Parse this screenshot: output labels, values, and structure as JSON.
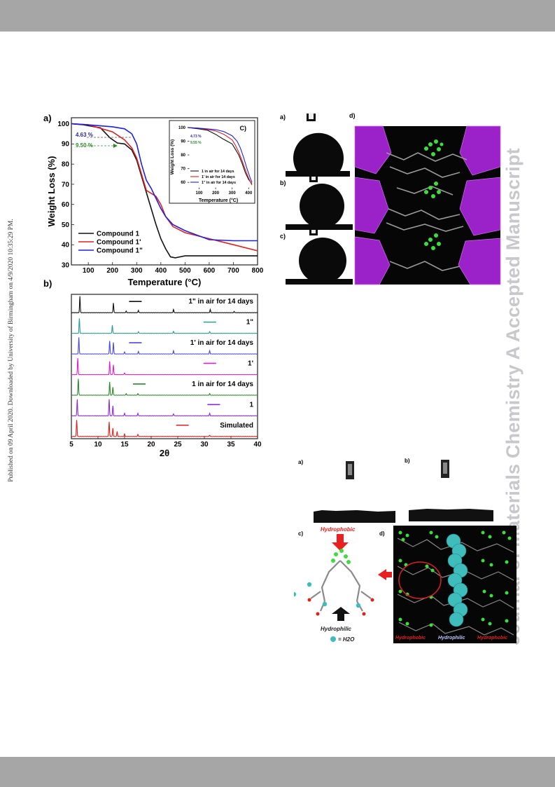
{
  "page": {
    "side_note": "Published on 09 April 2020. Downloaded by University of Birmingham on 4/9/2020 10:35:29 PM.",
    "watermark": "Journal of Materials Chemistry A Accepted Manuscript"
  },
  "tga_panel": {
    "label": "a)",
    "chart_data": {
      "type": "line",
      "xlabel": "Temperature (°C)",
      "ylabel": "Weight Loss (%)",
      "xlim": [
        30,
        800
      ],
      "ylim": [
        30,
        103
      ],
      "xticks": [
        100,
        200,
        300,
        400,
        500,
        600,
        700,
        800
      ],
      "yticks": [
        30,
        40,
        50,
        60,
        70,
        80,
        90,
        100
      ],
      "legend_position": "bottom-left",
      "annotations": [
        "4.63 %",
        "9.50 %"
      ],
      "series": [
        {
          "name": "Compound 1",
          "color": "#111111",
          "x": [
            30,
            80,
            150,
            190,
            220,
            250,
            280,
            300,
            320,
            350,
            380,
            400,
            420,
            440,
            460,
            500,
            600,
            700,
            800
          ],
          "y": [
            100,
            99.5,
            98,
            93,
            90.5,
            90,
            87,
            82,
            74,
            62,
            50,
            43,
            38,
            34,
            33.5,
            34.5,
            34.5,
            34.5,
            34.5
          ]
        },
        {
          "name": "Compound 1'",
          "color": "#e02020",
          "x": [
            30,
            100,
            200,
            250,
            280,
            300,
            320,
            340,
            380,
            400,
            420,
            450,
            500,
            600,
            700,
            800
          ],
          "y": [
            100,
            99.5,
            96,
            92,
            88,
            83,
            75,
            67,
            64,
            60,
            54,
            49,
            46,
            43,
            40,
            37
          ]
        },
        {
          "name": "Compound 1\"",
          "color": "#2020e0",
          "x": [
            30,
            100,
            200,
            250,
            280,
            300,
            320,
            340,
            360,
            380,
            400,
            420,
            450,
            500,
            600,
            700,
            800
          ],
          "y": [
            100,
            99.5,
            98.5,
            97.5,
            95,
            90,
            80,
            72,
            68,
            63,
            58,
            54,
            50,
            47,
            42.5,
            42,
            42
          ]
        }
      ]
    },
    "inset": {
      "label": "C)",
      "chart_data": {
        "type": "line",
        "xlabel": "Temperature (°C)",
        "ylabel": "Weight Loss (%)",
        "xlim": [
          30,
          420
        ],
        "ylim": [
          55,
          102
        ],
        "xticks": [
          100,
          200,
          300,
          400
        ],
        "yticks": [
          60,
          70,
          80,
          90,
          100
        ],
        "legend_position": "bottom-left",
        "annotations": [
          "4.73 %",
          "9.55 %"
        ],
        "series": [
          {
            "name": "1 in air for 14 days",
            "color": "#111111",
            "x": [
              30,
              100,
              150,
              200,
              240,
              270,
              300,
              320,
              340,
              360,
              380,
              400,
              420
            ],
            "y": [
              100,
              99,
              98,
              95,
              92,
              90,
              88,
              84,
              80,
              74,
              67,
              62,
              59
            ]
          },
          {
            "name": "1' in air for 14 days",
            "color": "#e02020",
            "x": [
              30,
              100,
              200,
              250,
              300,
              320,
              340,
              360,
              380,
              400,
              420
            ],
            "y": [
              100,
              99.5,
              97.5,
              95,
              91,
              87,
              82,
              76,
              69,
              63,
              58
            ]
          },
          {
            "name": "1\" in air for 14 days",
            "color": "#2020e0",
            "x": [
              30,
              100,
              200,
              250,
              300,
              330,
              350,
              370,
              390,
              410,
              420
            ],
            "y": [
              100,
              99.5,
              98.5,
              97,
              94,
              90,
              85,
              78,
              70,
              63,
              60
            ]
          }
        ]
      }
    }
  },
  "pxrd_panel": {
    "label": "b)",
    "chart_data": {
      "type": "line",
      "xlabel": "2θ",
      "xlim": [
        5,
        40
      ],
      "xticks": [
        5,
        10,
        15,
        20,
        25,
        30,
        35,
        40
      ],
      "series": [
        {
          "name": "1\" in air for 14 days",
          "color": "#111111",
          "peaks": [
            [
              6.6,
              1.0
            ],
            [
              12.9,
              0.6
            ],
            [
              15.3,
              0.1
            ],
            [
              17.6,
              0.15
            ],
            [
              24.2,
              0.2
            ],
            [
              31.1,
              0.2
            ],
            [
              35.6,
              0.08
            ]
          ]
        },
        {
          "name": "1\"",
          "color": "#2a9d95",
          "peaks": [
            [
              6.5,
              0.9
            ],
            [
              12.7,
              0.5
            ],
            [
              17.6,
              0.1
            ],
            [
              24.2,
              0.12
            ],
            [
              31.0,
              0.1
            ]
          ]
        },
        {
          "name": "1' in air for 14 days",
          "color": "#4a4ad8",
          "peaks": [
            [
              6.4,
              1.0
            ],
            [
              12.2,
              0.8
            ],
            [
              12.9,
              0.7
            ],
            [
              15.0,
              0.12
            ],
            [
              17.6,
              0.15
            ],
            [
              24.2,
              0.2
            ],
            [
              31.0,
              0.2
            ]
          ]
        },
        {
          "name": "1'",
          "color": "#e020d0",
          "peaks": [
            [
              6.2,
              1.0
            ],
            [
              12.2,
              0.8
            ],
            [
              12.9,
              0.6
            ],
            [
              15.0,
              0.1
            ]
          ]
        },
        {
          "name": "1 in air for 14 days",
          "color": "#2a8a2a",
          "peaks": [
            [
              6.3,
              1.0
            ],
            [
              12.2,
              0.8
            ],
            [
              12.8,
              0.5
            ],
            [
              15.3,
              0.1
            ],
            [
              17.5,
              0.1
            ],
            [
              31.0,
              0.1
            ]
          ]
        },
        {
          "name": "1",
          "color": "#8a2ad8",
          "peaks": [
            [
              6.1,
              1.0
            ],
            [
              12.1,
              1.0
            ],
            [
              12.8,
              0.6
            ],
            [
              15.0,
              0.15
            ],
            [
              17.5,
              0.15
            ],
            [
              24.2,
              0.12
            ],
            [
              31.0,
              0.15
            ]
          ]
        },
        {
          "name": "Simulated",
          "color": "#e02020",
          "peaks": [
            [
              6.0,
              1.0
            ],
            [
              12.1,
              0.9
            ],
            [
              12.8,
              0.5
            ],
            [
              13.6,
              0.3
            ],
            [
              15.0,
              0.15
            ],
            [
              17.5,
              0.12
            ],
            [
              31.0,
              0.08
            ]
          ]
        }
      ]
    }
  },
  "figure_top_right": {
    "labels": [
      "a)",
      "b)",
      "c)",
      "d)"
    ]
  },
  "figure_bottom": {
    "labels": [
      "a)",
      "b)",
      "c)",
      "d)"
    ],
    "hydrophobic_label": "Hydrophobic",
    "hydrophilic_label": "Hydrophilic",
    "water_legend": "= H2O",
    "bottom_labels": [
      "Hydrophobic",
      "Hydrophilic",
      "Hydrophobic"
    ]
  },
  "colors": {
    "bar_gray": "#a6a6a6",
    "watermark": "#c8c8cc",
    "polyhedra": "#a020c0",
    "fluorine": "#33dd33",
    "water": "#3fbcbc",
    "arrow_red": "#e8201f"
  }
}
